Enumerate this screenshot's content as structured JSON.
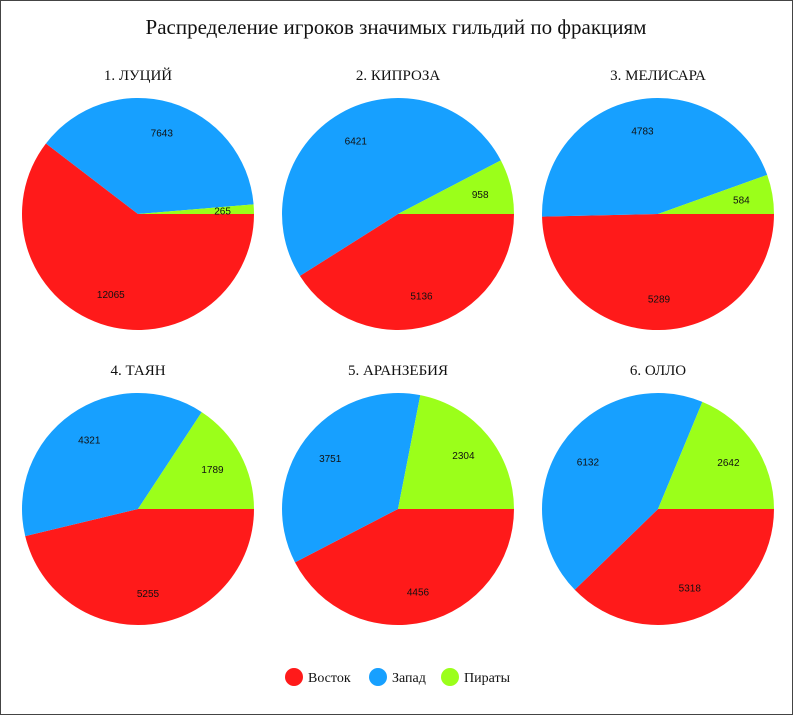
{
  "chart_data": {
    "type": "pie",
    "title": "Распределение игроков значимых гильдий по фракциям",
    "series_names": [
      "Восток",
      "Запад",
      "Пираты"
    ],
    "colors": [
      "#ff1a1a",
      "#17a0ff",
      "#9bff1a"
    ],
    "legend_position": "bottom",
    "pies": [
      {
        "title": "1. ЛУЦИЙ",
        "values": [
          12065,
          7643,
          265
        ]
      },
      {
        "title": "2. КИПРОЗА",
        "values": [
          5136,
          6421,
          958
        ]
      },
      {
        "title": "3. МЕЛИСАРА",
        "values": [
          5289,
          4783,
          584
        ]
      },
      {
        "title": "4. ТАЯН",
        "values": [
          5255,
          4321,
          1789
        ]
      },
      {
        "title": "5. АРАНЗЕБИЯ",
        "values": [
          4456,
          3751,
          2304
        ]
      },
      {
        "title": "6. ОЛЛО",
        "values": [
          5318,
          6132,
          2642
        ]
      }
    ]
  }
}
